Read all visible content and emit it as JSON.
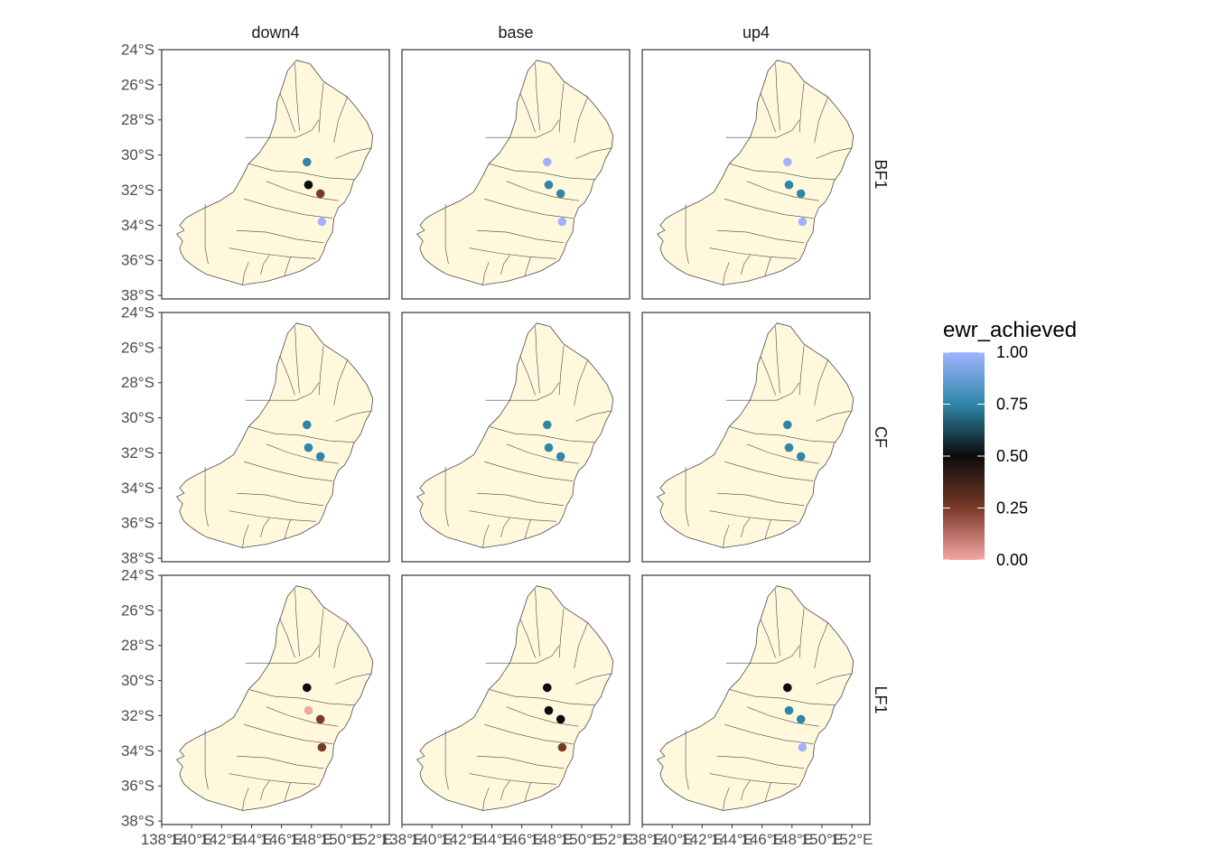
{
  "chart_data": {
    "type": "scatter",
    "subtype": "faceted-map",
    "columns": [
      "down4",
      "base",
      "up4"
    ],
    "rows": [
      "BF1",
      "CF",
      "LF1"
    ],
    "y_ticks": [
      "24°S",
      "26°S",
      "28°S",
      "30°S",
      "32°S",
      "34°S",
      "36°S",
      "38°S"
    ],
    "y_tick_values": [
      -24,
      -26,
      -28,
      -30,
      -32,
      -34,
      -36,
      -38
    ],
    "x_ticks": [
      "138°E",
      "140°E",
      "142°E",
      "144°E",
      "146°E",
      "148°E",
      "150°E",
      "152°E"
    ],
    "x_tick_values": [
      138,
      140,
      142,
      144,
      146,
      148,
      150,
      152
    ],
    "xlim": [
      138,
      153.2
    ],
    "ylim": [
      -38.2,
      -24
    ],
    "legend": {
      "title": "ewr_achieved",
      "labels": [
        "1.00",
        "0.75",
        "0.50",
        "0.25",
        "0.00"
      ],
      "values": [
        1.0,
        0.75,
        0.5,
        0.25,
        0.0
      ],
      "placement": "right"
    },
    "colors": {
      "panel_border": "#333333",
      "land_fill": "#fff8dc",
      "land_stroke": "#4a4a4a",
      "grid": "none"
    },
    "points": [
      {
        "row": "BF1",
        "col": "down4",
        "lon": 147.7,
        "lat": -30.4,
        "value": 0.75
      },
      {
        "row": "BF1",
        "col": "down4",
        "lon": 147.8,
        "lat": -31.7,
        "value": 0.5
      },
      {
        "row": "BF1",
        "col": "down4",
        "lon": 148.6,
        "lat": -32.2,
        "value": 0.25
      },
      {
        "row": "BF1",
        "col": "down4",
        "lon": 148.7,
        "lat": -33.8,
        "value": 1.0
      },
      {
        "row": "BF1",
        "col": "base",
        "lon": 147.7,
        "lat": -30.4,
        "value": 1.0
      },
      {
        "row": "BF1",
        "col": "base",
        "lon": 147.8,
        "lat": -31.7,
        "value": 0.75
      },
      {
        "row": "BF1",
        "col": "base",
        "lon": 148.6,
        "lat": -32.2,
        "value": 0.75
      },
      {
        "row": "BF1",
        "col": "base",
        "lon": 148.7,
        "lat": -33.8,
        "value": 1.0
      },
      {
        "row": "BF1",
        "col": "up4",
        "lon": 147.7,
        "lat": -30.4,
        "value": 1.0
      },
      {
        "row": "BF1",
        "col": "up4",
        "lon": 147.8,
        "lat": -31.7,
        "value": 0.75
      },
      {
        "row": "BF1",
        "col": "up4",
        "lon": 148.6,
        "lat": -32.2,
        "value": 0.75
      },
      {
        "row": "BF1",
        "col": "up4",
        "lon": 148.7,
        "lat": -33.8,
        "value": 1.0
      },
      {
        "row": "CF",
        "col": "down4",
        "lon": 147.7,
        "lat": -30.4,
        "value": 0.75
      },
      {
        "row": "CF",
        "col": "down4",
        "lon": 147.8,
        "lat": -31.7,
        "value": 0.75
      },
      {
        "row": "CF",
        "col": "down4",
        "lon": 148.6,
        "lat": -32.2,
        "value": 0.75
      },
      {
        "row": "CF",
        "col": "base",
        "lon": 147.7,
        "lat": -30.4,
        "value": 0.75
      },
      {
        "row": "CF",
        "col": "base",
        "lon": 147.8,
        "lat": -31.7,
        "value": 0.75
      },
      {
        "row": "CF",
        "col": "base",
        "lon": 148.6,
        "lat": -32.2,
        "value": 0.75
      },
      {
        "row": "CF",
        "col": "up4",
        "lon": 147.7,
        "lat": -30.4,
        "value": 0.75
      },
      {
        "row": "CF",
        "col": "up4",
        "lon": 147.8,
        "lat": -31.7,
        "value": 0.75
      },
      {
        "row": "CF",
        "col": "up4",
        "lon": 148.6,
        "lat": -32.2,
        "value": 0.75
      },
      {
        "row": "LF1",
        "col": "down4",
        "lon": 147.7,
        "lat": -30.4,
        "value": 0.5
      },
      {
        "row": "LF1",
        "col": "down4",
        "lon": 147.8,
        "lat": -31.7,
        "value": 0.0
      },
      {
        "row": "LF1",
        "col": "down4",
        "lon": 148.6,
        "lat": -32.2,
        "value": 0.25
      },
      {
        "row": "LF1",
        "col": "down4",
        "lon": 148.7,
        "lat": -33.8,
        "value": 0.25
      },
      {
        "row": "LF1",
        "col": "base",
        "lon": 147.7,
        "lat": -30.4,
        "value": 0.5
      },
      {
        "row": "LF1",
        "col": "base",
        "lon": 147.8,
        "lat": -31.7,
        "value": 0.5
      },
      {
        "row": "LF1",
        "col": "base",
        "lon": 148.6,
        "lat": -32.2,
        "value": 0.5
      },
      {
        "row": "LF1",
        "col": "base",
        "lon": 148.7,
        "lat": -33.8,
        "value": 0.25
      },
      {
        "row": "LF1",
        "col": "up4",
        "lon": 147.7,
        "lat": -30.4,
        "value": 0.5
      },
      {
        "row": "LF1",
        "col": "up4",
        "lon": 147.8,
        "lat": -31.7,
        "value": 0.75
      },
      {
        "row": "LF1",
        "col": "up4",
        "lon": 148.6,
        "lat": -32.2,
        "value": 0.75
      },
      {
        "row": "LF1",
        "col": "up4",
        "lon": 148.7,
        "lat": -33.8,
        "value": 1.0
      }
    ]
  }
}
